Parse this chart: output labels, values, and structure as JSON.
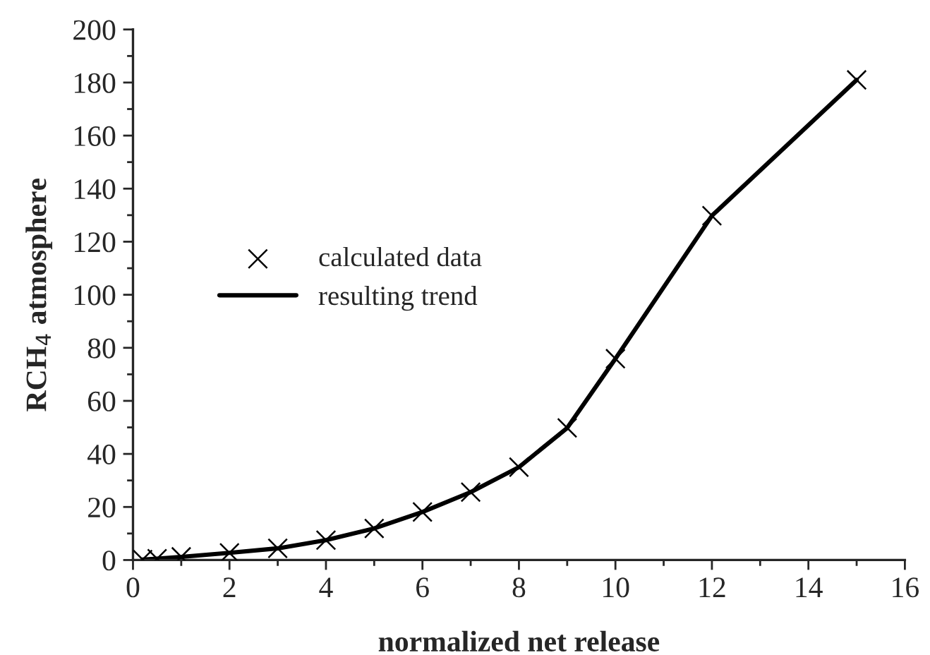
{
  "chart_data": {
    "type": "scatter",
    "xlabel": "normalized net release",
    "ylabel": "RCH$_{4}$ atmosphere",
    "series": [
      {
        "name": "calculated data",
        "color": "#000000",
        "marker": "cross",
        "x": [
          0.2,
          0.5,
          1,
          2,
          3,
          4,
          5,
          6,
          7,
          8,
          9,
          10,
          12,
          15
        ],
        "values": [
          0.2,
          0.5,
          1.2,
          2.7,
          4.4,
          7.5,
          11.9,
          18.1,
          25.6,
          35,
          49.8,
          75.9,
          129.8,
          181
        ]
      },
      {
        "name": "resulting trend",
        "type": "line",
        "color": "#000000",
        "line_style": "solid",
        "x": [
          0.2,
          0.5,
          1,
          2,
          3,
          4,
          5,
          6,
          7,
          8,
          9,
          10,
          12,
          15
        ],
        "values": [
          0.2,
          0.5,
          1.2,
          2.7,
          4.4,
          7.5,
          11.9,
          18.1,
          25.6,
          35,
          49.8,
          75.9,
          129.8,
          181
        ]
      }
    ],
    "xlim": [
      0,
      16
    ],
    "xticks": [
      0,
      2,
      4,
      6,
      8,
      10,
      12,
      14,
      16
    ],
    "ylim": [
      0,
      200
    ],
    "yticks": [
      0,
      20,
      40,
      60,
      80,
      100,
      120,
      140,
      160,
      180,
      200
    ],
    "grid": false,
    "legend": "left"
  }
}
